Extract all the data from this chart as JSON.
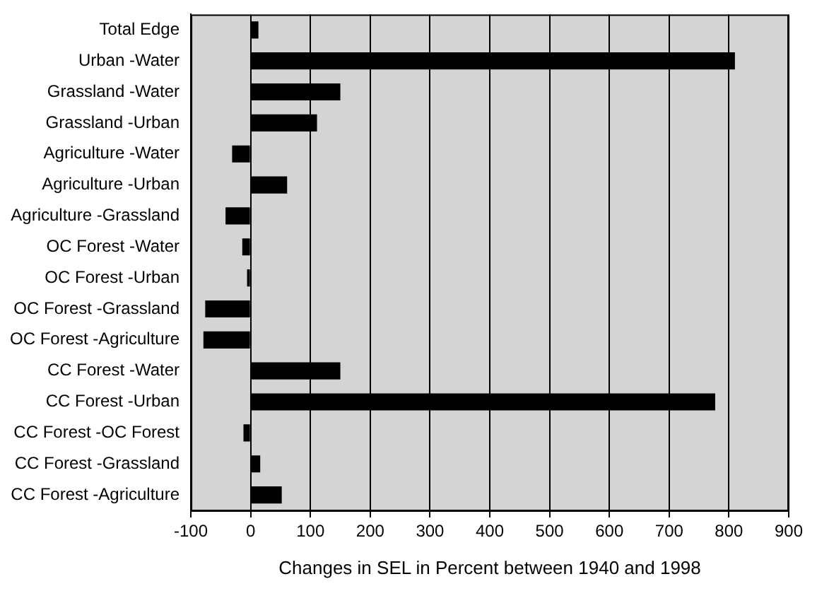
{
  "chart_data": {
    "type": "bar",
    "orientation": "horizontal",
    "xlabel": "Changes in SEL in Percent between 1940 and 1998",
    "categories": [
      "Total Edge",
      "Urban -Water",
      "Grassland -Water",
      "Grassland -Urban",
      "Agriculture -Water",
      "Agriculture -Urban",
      "Agriculture -Grassland",
      "OC Forest -Water",
      "OC Forest -Urban",
      "OC Forest -Grassland",
      "OC Forest -Agriculture",
      "CC Forest -Water",
      "CC Forest -Urban",
      "CC Forest -OC Forest",
      "CC Forest -Grassland",
      "CC Forest -Agriculture"
    ],
    "values": [
      13,
      810,
      150,
      111,
      -31,
      61,
      -42,
      -14,
      -6,
      -76,
      -79,
      150,
      777,
      -12,
      16,
      52
    ],
    "color": "#000000",
    "xlim": [
      -100,
      900
    ],
    "xticks": [
      -100,
      0,
      100,
      200,
      300,
      400,
      500,
      600,
      700,
      800,
      900
    ],
    "grid": "x",
    "legend": false
  }
}
